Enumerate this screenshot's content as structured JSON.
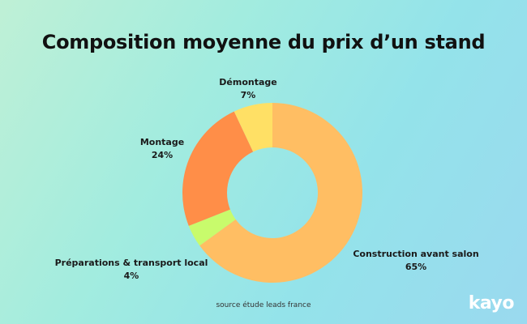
{
  "chart_data": {
    "type": "pie",
    "title": "Composition moyenne du prix d’un stand",
    "slices": [
      {
        "label": "Construction avant salon",
        "value": 65,
        "value_label": "65%",
        "color": "#ffbe63"
      },
      {
        "label": "Préparations & transport local",
        "value": 4,
        "value_label": "4%",
        "color": "#c8fb6c"
      },
      {
        "label": "Montage",
        "value": 24,
        "value_label": "24%",
        "color": "#ff8e48"
      },
      {
        "label": "Démontage",
        "value": 7,
        "value_label": "7%",
        "color": "#ffe065"
      }
    ],
    "hole": "donut"
  },
  "footer": {
    "source": "source étude leads france",
    "logo": "kayo"
  }
}
